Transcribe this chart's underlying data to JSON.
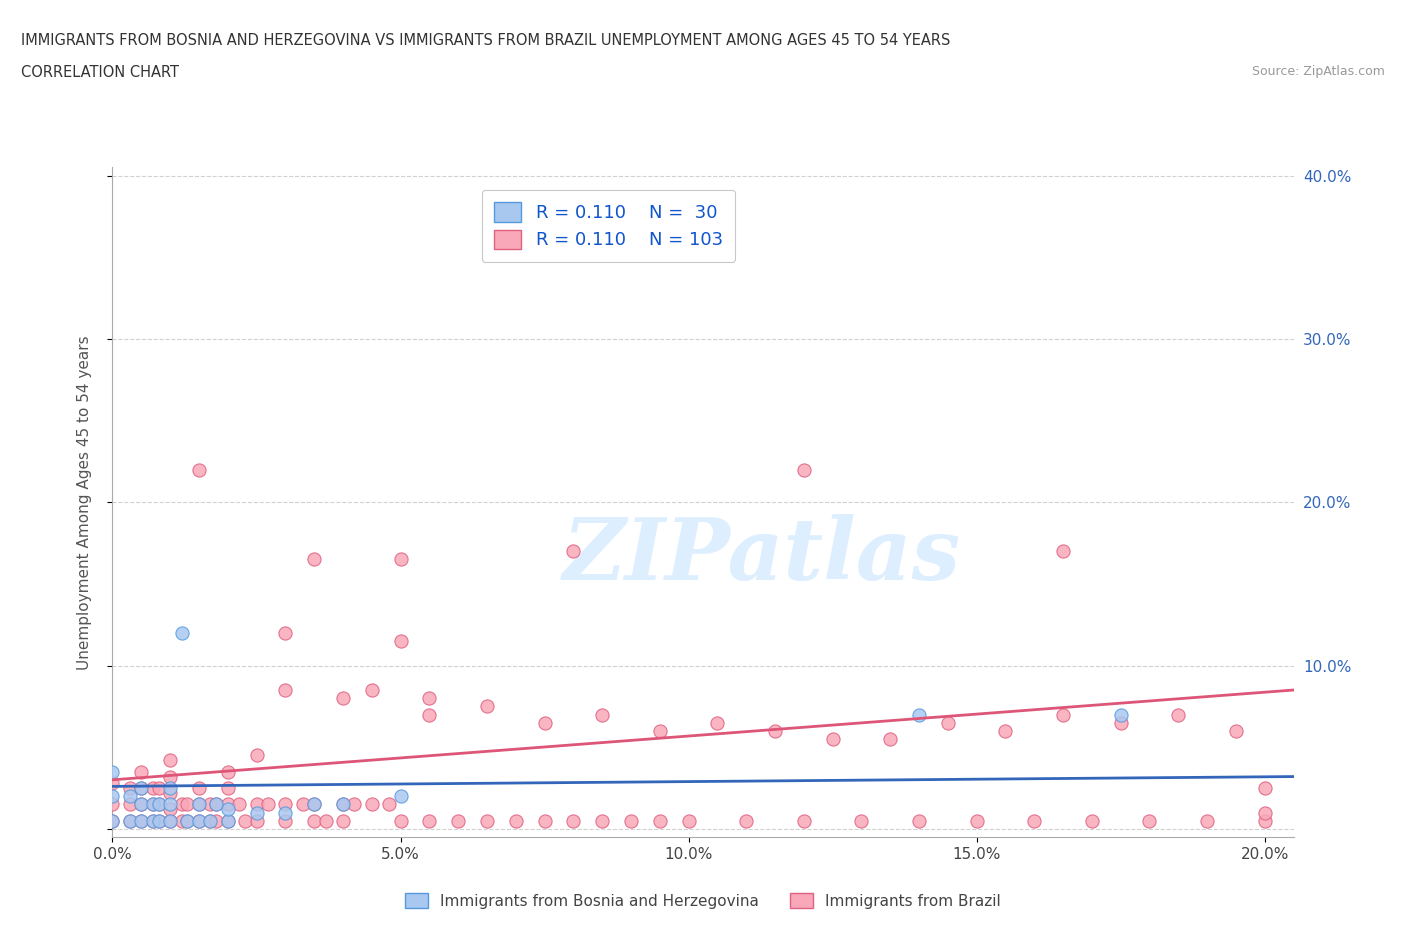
{
  "title_line1": "IMMIGRANTS FROM BOSNIA AND HERZEGOVINA VS IMMIGRANTS FROM BRAZIL UNEMPLOYMENT AMONG AGES 45 TO 54 YEARS",
  "title_line2": "CORRELATION CHART",
  "source_text": "Source: ZipAtlas.com",
  "ylabel": "Unemployment Among Ages 45 to 54 years",
  "xlim": [
    0.0,
    0.205
  ],
  "ylim": [
    -0.005,
    0.405
  ],
  "xticks": [
    0.0,
    0.05,
    0.1,
    0.15,
    0.2
  ],
  "yticks": [
    0.0,
    0.1,
    0.2,
    0.3,
    0.4
  ],
  "xtick_labels": [
    "0.0%",
    "5.0%",
    "10.0%",
    "15.0%",
    "20.0%"
  ],
  "ytick_labels_right": [
    "",
    "10.0%",
    "20.0%",
    "30.0%",
    "40.0%"
  ],
  "color_bosnia": "#a8c8f0",
  "color_brazil": "#f8a8b8",
  "edge_color_bosnia": "#5599dd",
  "edge_color_brazil": "#e06080",
  "line_color_bosnia": "#3366bb",
  "line_color_brazil": "#dd5577",
  "legend_R_bosnia": "0.110",
  "legend_N_bosnia": "30",
  "legend_R_brazil": "0.110",
  "legend_N_brazil": "103",
  "legend_label_bosnia": "Immigrants from Bosnia and Herzegovina",
  "legend_label_brazil": "Immigrants from Brazil",
  "watermark": "ZIPatlas",
  "watermark_color": "#ddeeff",
  "background_color": "#ffffff",
  "bosnia_x": [
    0.0,
    0.0,
    0.0,
    0.003,
    0.003,
    0.005,
    0.005,
    0.005,
    0.007,
    0.007,
    0.008,
    0.008,
    0.01,
    0.01,
    0.01,
    0.012,
    0.013,
    0.015,
    0.015,
    0.017,
    0.018,
    0.02,
    0.02,
    0.025,
    0.03,
    0.035,
    0.04,
    0.05,
    0.14,
    0.175
  ],
  "bosnia_y": [
    0.005,
    0.02,
    0.035,
    0.005,
    0.02,
    0.005,
    0.015,
    0.025,
    0.005,
    0.015,
    0.005,
    0.015,
    0.005,
    0.015,
    0.025,
    0.12,
    0.005,
    0.005,
    0.015,
    0.005,
    0.015,
    0.005,
    0.012,
    0.01,
    0.01,
    0.015,
    0.015,
    0.02,
    0.07,
    0.07
  ],
  "brazil_x": [
    0.0,
    0.0,
    0.0,
    0.003,
    0.003,
    0.003,
    0.005,
    0.005,
    0.005,
    0.005,
    0.007,
    0.007,
    0.007,
    0.008,
    0.008,
    0.008,
    0.01,
    0.01,
    0.01,
    0.01,
    0.01,
    0.012,
    0.012,
    0.013,
    0.013,
    0.015,
    0.015,
    0.015,
    0.017,
    0.017,
    0.018,
    0.018,
    0.02,
    0.02,
    0.02,
    0.022,
    0.023,
    0.025,
    0.025,
    0.027,
    0.03,
    0.03,
    0.03,
    0.033,
    0.035,
    0.035,
    0.037,
    0.04,
    0.04,
    0.042,
    0.045,
    0.048,
    0.05,
    0.05,
    0.055,
    0.06,
    0.065,
    0.07,
    0.075,
    0.08,
    0.085,
    0.09,
    0.095,
    0.1,
    0.11,
    0.12,
    0.13,
    0.14,
    0.15,
    0.16,
    0.17,
    0.18,
    0.19,
    0.2,
    0.2,
    0.2,
    0.015,
    0.035,
    0.05,
    0.08,
    0.12,
    0.165,
    0.055,
    0.065,
    0.075,
    0.085,
    0.095,
    0.105,
    0.115,
    0.125,
    0.135,
    0.145,
    0.155,
    0.165,
    0.175,
    0.185,
    0.195,
    0.02,
    0.025,
    0.03,
    0.04,
    0.045,
    0.055
  ],
  "brazil_y": [
    0.005,
    0.015,
    0.028,
    0.005,
    0.015,
    0.025,
    0.005,
    0.015,
    0.025,
    0.035,
    0.005,
    0.015,
    0.025,
    0.005,
    0.015,
    0.025,
    0.005,
    0.012,
    0.022,
    0.032,
    0.042,
    0.005,
    0.015,
    0.005,
    0.015,
    0.005,
    0.015,
    0.025,
    0.005,
    0.015,
    0.005,
    0.015,
    0.005,
    0.015,
    0.025,
    0.015,
    0.005,
    0.005,
    0.015,
    0.015,
    0.005,
    0.015,
    0.12,
    0.015,
    0.005,
    0.015,
    0.005,
    0.005,
    0.015,
    0.015,
    0.015,
    0.015,
    0.005,
    0.115,
    0.005,
    0.005,
    0.005,
    0.005,
    0.005,
    0.005,
    0.005,
    0.005,
    0.005,
    0.005,
    0.005,
    0.005,
    0.005,
    0.005,
    0.005,
    0.005,
    0.005,
    0.005,
    0.005,
    0.005,
    0.01,
    0.025,
    0.22,
    0.165,
    0.165,
    0.17,
    0.22,
    0.17,
    0.07,
    0.075,
    0.065,
    0.07,
    0.06,
    0.065,
    0.06,
    0.055,
    0.055,
    0.065,
    0.06,
    0.07,
    0.065,
    0.07,
    0.06,
    0.035,
    0.045,
    0.085,
    0.08,
    0.085,
    0.08
  ]
}
